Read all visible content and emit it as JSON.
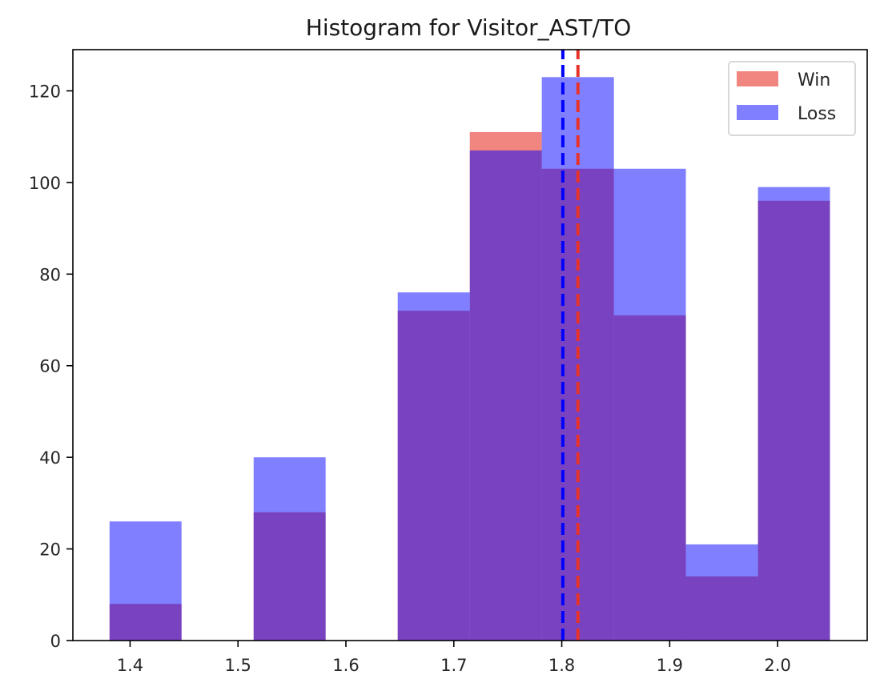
{
  "chart_data": {
    "type": "bar",
    "title": "Histogram for Visitor_AST/TO",
    "xlabel": "",
    "ylabel": "",
    "xlim": [
      1.347,
      2.083
    ],
    "ylim": [
      0,
      129
    ],
    "xticks": [
      1.4,
      1.5,
      1.6,
      1.7,
      1.8,
      1.9,
      2.0
    ],
    "xtick_labels": [
      "1.4",
      "1.5",
      "1.6",
      "1.7",
      "1.8",
      "1.9",
      "2.0"
    ],
    "yticks": [
      0,
      20,
      40,
      60,
      80,
      100,
      120
    ],
    "ytick_labels": [
      "0",
      "20",
      "40",
      "60",
      "80",
      "100",
      "120"
    ],
    "bin_edges": [
      1.381,
      1.4477,
      1.5145,
      1.5812,
      1.648,
      1.7148,
      1.7815,
      1.8483,
      1.915,
      1.9818,
      2.0485
    ],
    "series": [
      {
        "name": "Win",
        "color": "#e8332b",
        "alpha": 0.6,
        "values": [
          8,
          0,
          28,
          0,
          72,
          111,
          103,
          71,
          14,
          96
        ],
        "mean": 1.815
      },
      {
        "name": "Loss",
        "color": "#0000ff",
        "alpha": 0.5,
        "values": [
          26,
          0,
          40,
          0,
          76,
          107,
          123,
          103,
          21,
          99
        ],
        "mean": 1.801
      }
    ],
    "mean_lines": [
      {
        "series": "Loss",
        "x": 1.801,
        "color": "#0000ff",
        "style": "dashed"
      },
      {
        "series": "Win",
        "x": 1.815,
        "color": "#e8332b",
        "style": "dashed"
      }
    ],
    "legend": {
      "position": "top-right",
      "entries": [
        "Win",
        "Loss"
      ]
    },
    "grid": false
  }
}
